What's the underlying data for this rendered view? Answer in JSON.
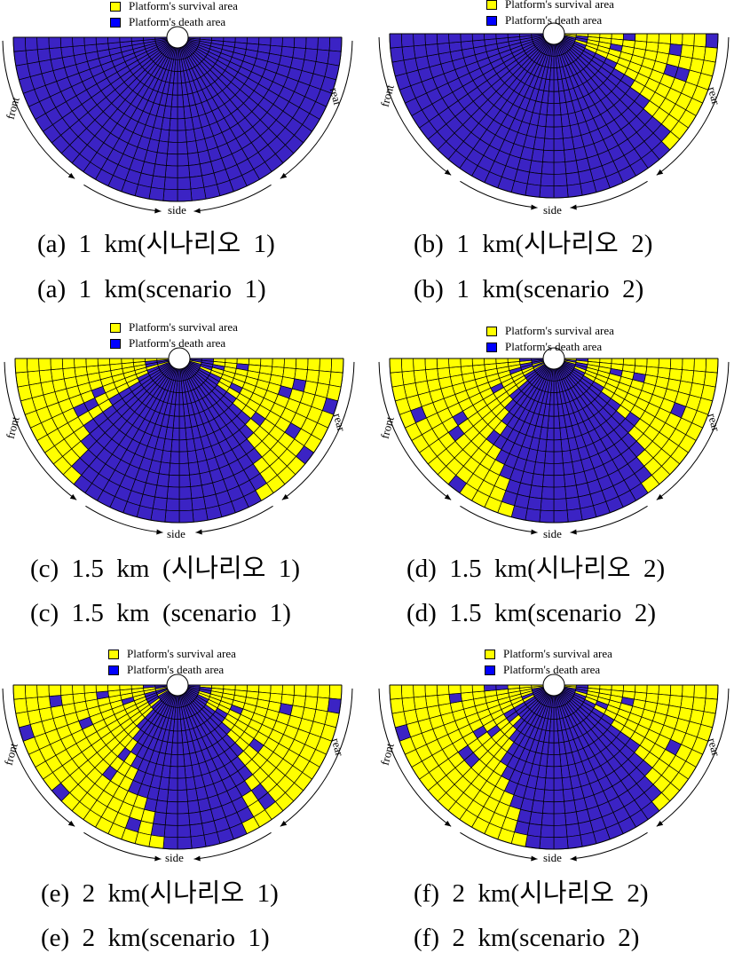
{
  "legend": {
    "survival": "Platform's survival area",
    "death": "Platform's death area"
  },
  "directions": {
    "front": "front",
    "rear": "rear",
    "side": "side"
  },
  "colors": {
    "survival": "#ffff00",
    "death": "#3b23c4",
    "grid": "#000000"
  },
  "grid": {
    "rings": 13,
    "sectors": 36
  },
  "panels": [
    {
      "caption_ko": "(a)  1  km(시나리오  1)",
      "caption_en": "(a)  1  km(scenario  1)",
      "survival_front": 0,
      "survival_rear": 0,
      "survival_fraction": 0.0
    },
    {
      "caption_ko": "(b)  1  km(시나리오  2)",
      "caption_en": "(b)  1  km(scenario  2)",
      "survival_front": 0,
      "survival_rear": 40,
      "survival_fraction": 0.12
    },
    {
      "caption_ko": "(c)  1.5  km  (시나리오  1)",
      "caption_en": "(c)  1.5  km  (scenario  1)",
      "survival_front": 45,
      "survival_rear": 55,
      "survival_fraction": 0.26
    },
    {
      "caption_ko": "(d)  1.5  km(시나리오  2)",
      "caption_en": "(d)  1.5  km(scenario  2)",
      "survival_front": 70,
      "survival_rear": 50,
      "survival_fraction": 0.3
    },
    {
      "caption_ko": "(e)  2  km(시나리오  1)",
      "caption_en": "(e)  2  km(scenario  1)",
      "survival_front": 80,
      "survival_rear": 60,
      "survival_fraction": 0.36
    },
    {
      "caption_ko": "(f)  2  km(시나리오  2)",
      "caption_en": "(f)  2  km(scenario  2)",
      "survival_front": 75,
      "survival_rear": 45,
      "survival_fraction": 0.3
    }
  ]
}
